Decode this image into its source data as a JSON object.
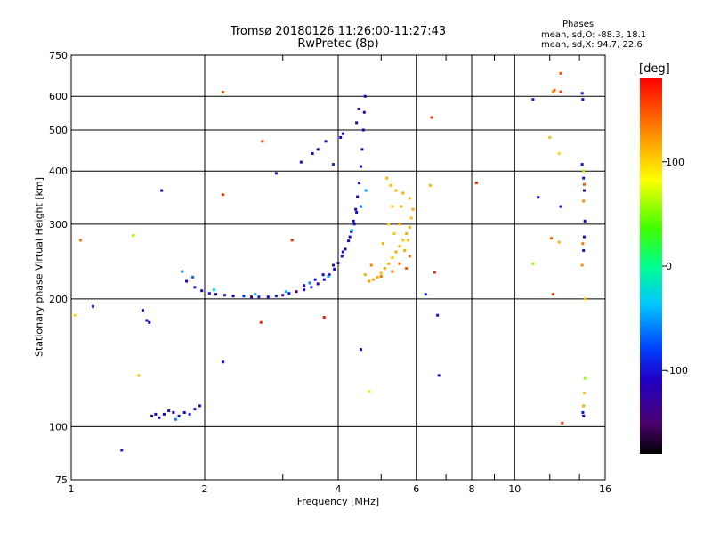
{
  "header": {
    "title_line1": "Tromsø 20180126 11:26:00-11:27:43",
    "title_line2": "RwPretec (8p)",
    "stats_title": "Phases",
    "stats_o": "mean, sd,O: -88.3, 18.1",
    "stats_x": "mean, sd,X: 94.7, 22.6"
  },
  "chart_data": {
    "type": "scatter",
    "xlabel": "Frequency [MHz]",
    "ylabel": "Stationary phase Virtual Height [km]",
    "x_scale": "log",
    "y_scale": "log",
    "xlim": [
      1,
      16
    ],
    "ylim": [
      75,
      750
    ],
    "x_ticks": [
      1,
      2,
      4,
      6,
      8,
      10,
      16
    ],
    "y_ticks": [
      75,
      100,
      200,
      300,
      400,
      500,
      600,
      750
    ],
    "grid": true,
    "colorbar": {
      "label": "[deg]",
      "ticks": [
        100,
        0,
        -100
      ],
      "range": [
        -180,
        180
      ]
    },
    "series": [
      {
        "points": [
          [
            1.82,
            220,
            -120
          ],
          [
            1.9,
            213,
            -105
          ],
          [
            1.97,
            209,
            -110
          ],
          [
            2.05,
            206,
            -95
          ],
          [
            2.12,
            205,
            -115
          ],
          [
            2.22,
            204,
            -100
          ],
          [
            2.32,
            203,
            -110
          ],
          [
            2.45,
            203,
            -85
          ],
          [
            2.55,
            202,
            -120
          ],
          [
            2.65,
            202,
            -95
          ],
          [
            2.78,
            202,
            -110
          ],
          [
            2.9,
            203,
            -90
          ],
          [
            3.0,
            204,
            -140
          ],
          [
            3.1,
            206,
            -100
          ],
          [
            3.22,
            208,
            -150
          ],
          [
            3.35,
            210,
            -110
          ],
          [
            3.48,
            213,
            -95
          ],
          [
            3.6,
            217,
            -120
          ],
          [
            3.72,
            222,
            -105
          ],
          [
            3.82,
            228,
            -125
          ],
          [
            3.92,
            235,
            -110
          ],
          [
            4.0,
            243,
            -115
          ],
          [
            4.08,
            252,
            -100
          ],
          [
            4.15,
            262,
            -120
          ],
          [
            4.22,
            274,
            -110
          ],
          [
            4.28,
            288,
            -115
          ],
          [
            4.33,
            305,
            -110
          ],
          [
            4.38,
            325,
            -120
          ],
          [
            4.42,
            348,
            -110
          ],
          [
            4.46,
            375,
            -115
          ],
          [
            4.5,
            410,
            -120
          ],
          [
            4.53,
            450,
            -110
          ],
          [
            4.56,
            500,
            -115
          ],
          [
            4.58,
            550,
            -120
          ],
          [
            4.6,
            600,
            -118
          ],
          [
            4.45,
            560,
            -110
          ],
          [
            4.4,
            520,
            -112
          ],
          [
            3.6,
            450,
            -120
          ],
          [
            3.75,
            470,
            -115
          ],
          [
            3.5,
            440,
            -118
          ],
          [
            4.05,
            480,
            -115
          ],
          [
            4.1,
            490,
            -110
          ],
          [
            3.9,
            415,
            -90
          ],
          [
            3.3,
            420,
            -110
          ],
          [
            3.35,
            215,
            -105
          ],
          [
            3.55,
            222,
            -95
          ],
          [
            3.7,
            228,
            -110
          ],
          [
            3.9,
            240,
            -100
          ],
          [
            4.1,
            258,
            -105
          ],
          [
            4.25,
            280,
            -110
          ],
          [
            4.35,
            300,
            -100
          ],
          [
            4.4,
            320,
            -105
          ],
          [
            1.78,
            232,
            -60
          ],
          [
            1.88,
            225,
            -70
          ],
          [
            2.1,
            210,
            -30
          ],
          [
            2.6,
            205,
            -50
          ],
          [
            3.05,
            208,
            -40
          ],
          [
            3.45,
            218,
            -60
          ],
          [
            3.8,
            226,
            -50
          ],
          [
            4.3,
            290,
            -40
          ],
          [
            4.5,
            330,
            -60
          ],
          [
            4.62,
            360,
            -50
          ],
          [
            1.52,
            106,
            -110
          ],
          [
            1.55,
            107,
            -115
          ],
          [
            1.58,
            105,
            -105
          ],
          [
            1.62,
            107,
            -110
          ],
          [
            1.66,
            109,
            -105
          ],
          [
            1.7,
            108,
            -120
          ],
          [
            1.75,
            106,
            -100
          ],
          [
            1.8,
            108,
            -110
          ],
          [
            1.85,
            107,
            -95
          ],
          [
            1.9,
            110,
            -115
          ],
          [
            1.95,
            112,
            -105
          ],
          [
            1.72,
            104,
            -60
          ],
          [
            1.45,
            188,
            -120
          ],
          [
            1.48,
            178,
            -110
          ],
          [
            1.5,
            176,
            -115
          ],
          [
            1.6,
            360,
            -120
          ],
          [
            1.12,
            192,
            -100
          ],
          [
            1.3,
            88,
            -100
          ],
          [
            2.9,
            395,
            -100
          ],
          [
            6.7,
            183,
            -100
          ],
          [
            6.75,
            132,
            -100
          ],
          [
            4.5,
            152,
            -110
          ],
          [
            2.2,
            142,
            -100
          ],
          [
            6.3,
            205,
            -90
          ],
          [
            4.6,
            228,
            120
          ],
          [
            4.7,
            220,
            125
          ],
          [
            4.8,
            222,
            115
          ],
          [
            4.9,
            225,
            120
          ],
          [
            5.0,
            230,
            110
          ],
          [
            5.1,
            236,
            115
          ],
          [
            5.2,
            242,
            120
          ],
          [
            5.3,
            250,
            110
          ],
          [
            5.4,
            258,
            120
          ],
          [
            5.5,
            266,
            115
          ],
          [
            5.6,
            275,
            110
          ],
          [
            5.7,
            285,
            120
          ],
          [
            5.8,
            295,
            115
          ],
          [
            5.85,
            310,
            110
          ],
          [
            5.9,
            325,
            120
          ],
          [
            5.8,
            345,
            110
          ],
          [
            5.6,
            355,
            120
          ],
          [
            5.4,
            360,
            115
          ],
          [
            5.25,
            370,
            110
          ],
          [
            5.15,
            385,
            115
          ],
          [
            5.2,
            300,
            105
          ],
          [
            5.35,
            285,
            110
          ],
          [
            5.5,
            300,
            115
          ],
          [
            5.65,
            260,
            120
          ],
          [
            5.75,
            275,
            110
          ],
          [
            5.05,
            270,
            120
          ],
          [
            5.3,
            330,
            110
          ],
          [
            5.55,
            330,
            115
          ],
          [
            5.5,
            242,
            140
          ],
          [
            5.7,
            236,
            150
          ],
          [
            5.3,
            232,
            145
          ],
          [
            5.0,
            226,
            140
          ],
          [
            5.8,
            252,
            140
          ],
          [
            4.75,
            240,
            135
          ],
          [
            4.7,
            121,
            70
          ],
          [
            1.42,
            132,
            110
          ],
          [
            1.38,
            282,
            60
          ],
          [
            1.05,
            275,
            140
          ],
          [
            1.02,
            183,
            100
          ],
          [
            2.2,
            614,
            150
          ],
          [
            2.2,
            352,
            160
          ],
          [
            2.7,
            470,
            160
          ],
          [
            2.68,
            176,
            165
          ],
          [
            3.15,
            275,
            165
          ],
          [
            3.72,
            181,
            170
          ],
          [
            6.6,
            231,
            170
          ],
          [
            6.5,
            535,
            165
          ],
          [
            6.45,
            370,
            115
          ],
          [
            8.2,
            375,
            165
          ],
          [
            11.0,
            242,
            60
          ],
          [
            12.1,
            278,
            145
          ],
          [
            12.6,
            272,
            115
          ],
          [
            12.2,
            205,
            165
          ],
          [
            12.8,
            102,
            160
          ],
          [
            12.0,
            480,
            110
          ],
          [
            12.6,
            440,
            100
          ],
          [
            12.2,
            615,
            130
          ],
          [
            12.7,
            615,
            160
          ],
          [
            12.7,
            680,
            155
          ],
          [
            11.3,
            347,
            -100
          ],
          [
            12.7,
            330,
            -100
          ],
          [
            12.3,
            620,
            145
          ],
          [
            14.2,
            610,
            -100
          ],
          [
            14.25,
            590,
            -110
          ],
          [
            14.3,
            385,
            -100
          ],
          [
            14.35,
            360,
            -120
          ],
          [
            14.3,
            340,
            130
          ],
          [
            14.4,
            305,
            -110
          ],
          [
            14.35,
            280,
            -105
          ],
          [
            14.25,
            270,
            140
          ],
          [
            14.3,
            260,
            -100
          ],
          [
            14.2,
            240,
            130
          ],
          [
            14.4,
            130,
            60
          ],
          [
            14.35,
            120,
            110
          ],
          [
            14.3,
            112,
            120
          ],
          [
            14.25,
            108,
            -100
          ],
          [
            14.3,
            106,
            -110
          ],
          [
            14.35,
            372,
            150
          ],
          [
            14.2,
            415,
            -100
          ],
          [
            14.3,
            400,
            60
          ],
          [
            11.0,
            590,
            -100
          ],
          [
            14.4,
            200,
            110
          ]
        ]
      }
    ]
  }
}
